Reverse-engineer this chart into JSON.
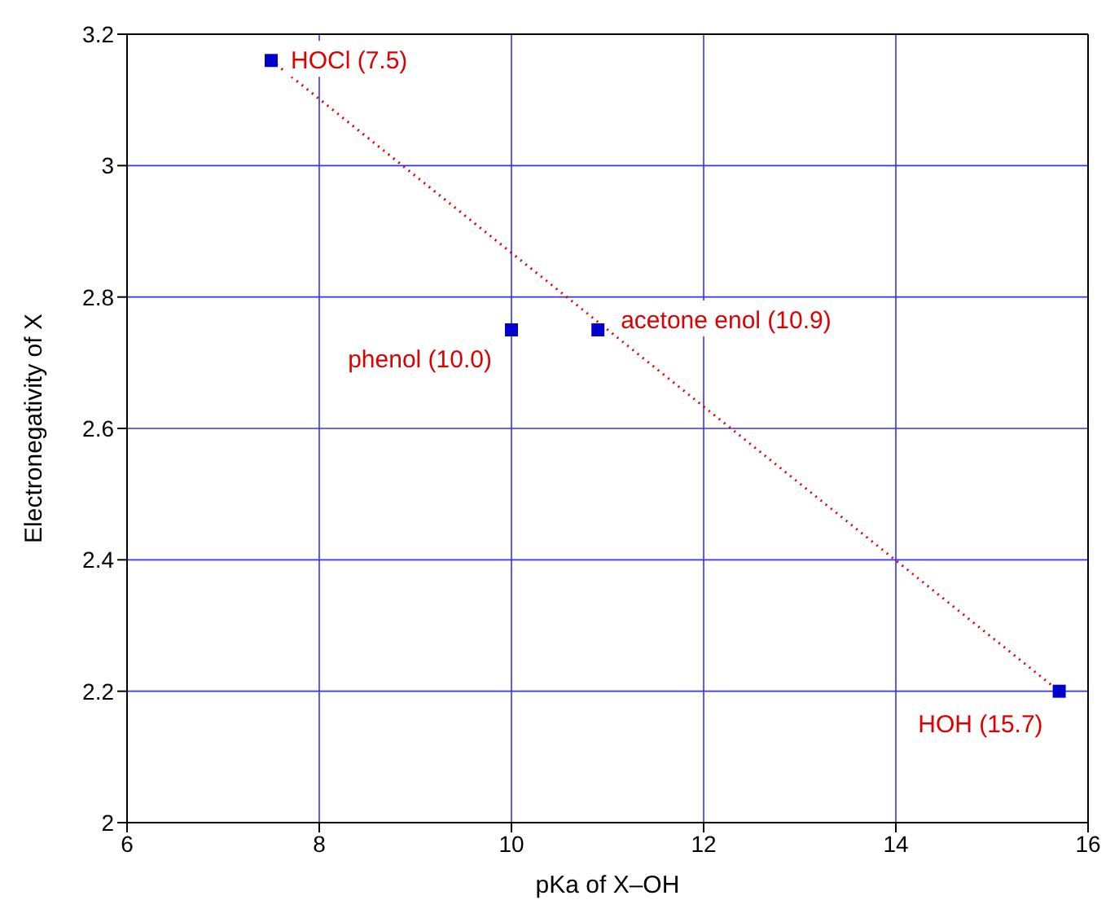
{
  "chart_data": {
    "type": "scatter",
    "xlabel": "pKa of X–OH",
    "ylabel": "Electronegativity of X",
    "x": [
      7.5,
      10.0,
      10.9,
      15.7
    ],
    "series": [
      {
        "color": "#0000cc",
        "values": [
          3.16,
          2.75,
          2.75,
          2.2
        ],
        "marker": "square"
      },
      {
        "type": "line",
        "color": "#dd0000",
        "x": [
          7.5,
          15.7
        ],
        "values": [
          3.16,
          2.2
        ],
        "line_style": "dotted",
        "marker": "none"
      }
    ],
    "annotations": [
      {
        "text": "HOCl (7.5)",
        "x": 7.5,
        "y": 3.16
      },
      {
        "text": "phenol (10.0)",
        "x": 10.0,
        "y": 2.75
      },
      {
        "text": "acetone enol (10.9)",
        "x": 10.9,
        "y": 2.75
      },
      {
        "text": "HOH (15.7)",
        "x": 15.7,
        "y": 2.2
      }
    ],
    "xlim": [
      6,
      16
    ],
    "xticks": [
      6,
      8,
      10,
      12,
      14,
      16
    ],
    "ylim": [
      2,
      3.2
    ],
    "yticks": [
      2,
      2.2,
      2.4,
      2.6,
      2.8,
      3,
      3.2
    ],
    "grid": true
  }
}
